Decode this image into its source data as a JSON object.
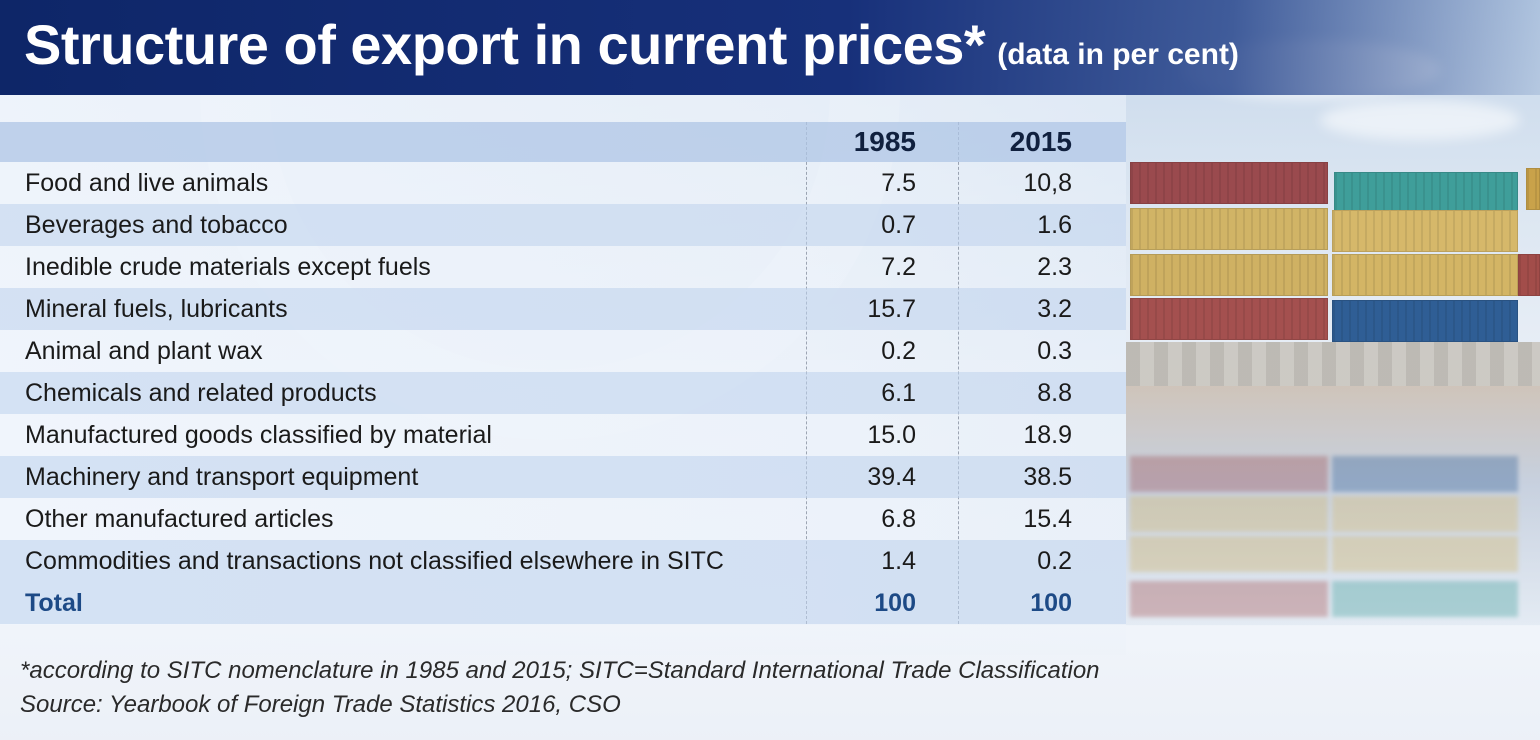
{
  "header": {
    "title": "Structure of export in current prices*",
    "subtitle": "(data in per cent)"
  },
  "chart_data": {
    "type": "table",
    "columns": [
      "",
      "1985",
      "2015"
    ],
    "rows": [
      {
        "category": "Food and live animals",
        "v1985": "7.5",
        "v2015": "10,8"
      },
      {
        "category": "Beverages and tobacco",
        "v1985": "0.7",
        "v2015": "1.6"
      },
      {
        "category": "Inedible crude materials except fuels",
        "v1985": "7.2",
        "v2015": "2.3"
      },
      {
        "category": "Mineral fuels, lubricants",
        "v1985": "15.7",
        "v2015": "3.2"
      },
      {
        "category": "Animal and plant wax",
        "v1985": "0.2",
        "v2015": "0.3"
      },
      {
        "category": "Chemicals and related products",
        "v1985": "6.1",
        "v2015": "8.8"
      },
      {
        "category": "Manufactured goods classified by material",
        "v1985": "15.0",
        "v2015": "18.9"
      },
      {
        "category": "Machinery and transport equipment",
        "v1985": "39.4",
        "v2015": "38.5"
      },
      {
        "category": "Other manufactured articles",
        "v1985": "6.8",
        "v2015": "15.4"
      },
      {
        "category": "Commodities and transactions not classified elsewhere in SITC",
        "v1985": "1.4",
        "v2015": "0.2"
      }
    ],
    "total": {
      "category": "Total",
      "v1985": "100",
      "v2015": "100"
    }
  },
  "footnotes": {
    "note": "*according to SITC nomenclature in 1985 and 2015;  SITC=Standard International Trade Classification",
    "source": "Source: Yearbook of Foreign Trade Statistics 2016, CSO"
  },
  "colors": {
    "title_bar": "#0e2668",
    "total_text": "#1d4a86",
    "row_band": "#bed2ec"
  }
}
